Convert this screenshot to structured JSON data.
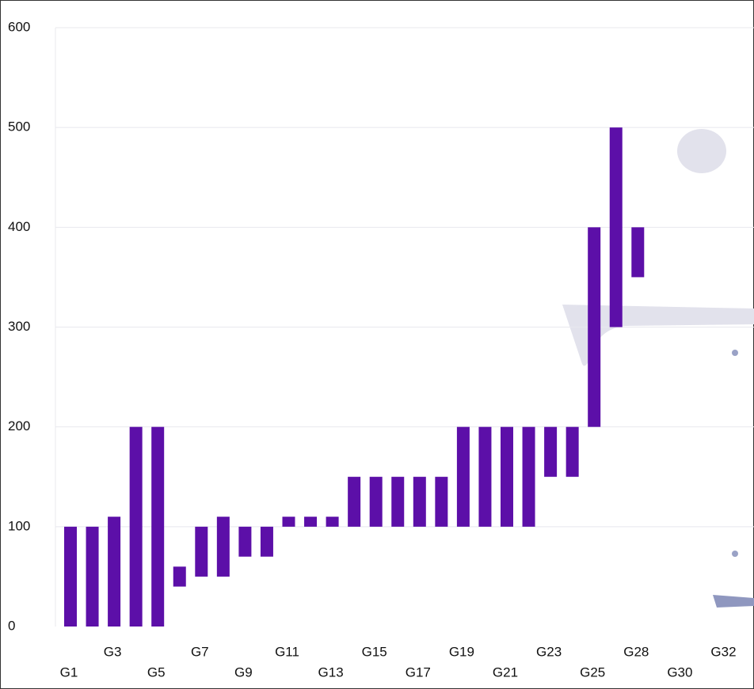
{
  "chart_data": {
    "type": "floating-bar",
    "categories": [
      "G1",
      null,
      "G3",
      null,
      "G5",
      null,
      "G7",
      null,
      "G9",
      null,
      "G11",
      null,
      "G13",
      null,
      "G15",
      null,
      "G17",
      null,
      "G19",
      null,
      "G21",
      null,
      "G23",
      null,
      "G25",
      null,
      "G28",
      null,
      "G30",
      null,
      "G32"
    ],
    "low": [
      0,
      0,
      0,
      0,
      0,
      40,
      50,
      50,
      70,
      70,
      100,
      100,
      100,
      100,
      100,
      100,
      100,
      100,
      100,
      100,
      100,
      100,
      150,
      150,
      200,
      300,
      350,
      null,
      null,
      null,
      null
    ],
    "high": [
      100,
      100,
      110,
      200,
      200,
      60,
      100,
      110,
      100,
      100,
      110,
      110,
      110,
      150,
      150,
      150,
      150,
      150,
      200,
      200,
      200,
      200,
      200,
      200,
      400,
      500,
      400,
      null,
      null,
      null,
      null
    ],
    "color": "#5c0fa8",
    "ylim": [
      0,
      600
    ],
    "yticks": [
      0,
      100,
      200,
      300,
      400,
      500,
      600
    ],
    "grid": true
  }
}
